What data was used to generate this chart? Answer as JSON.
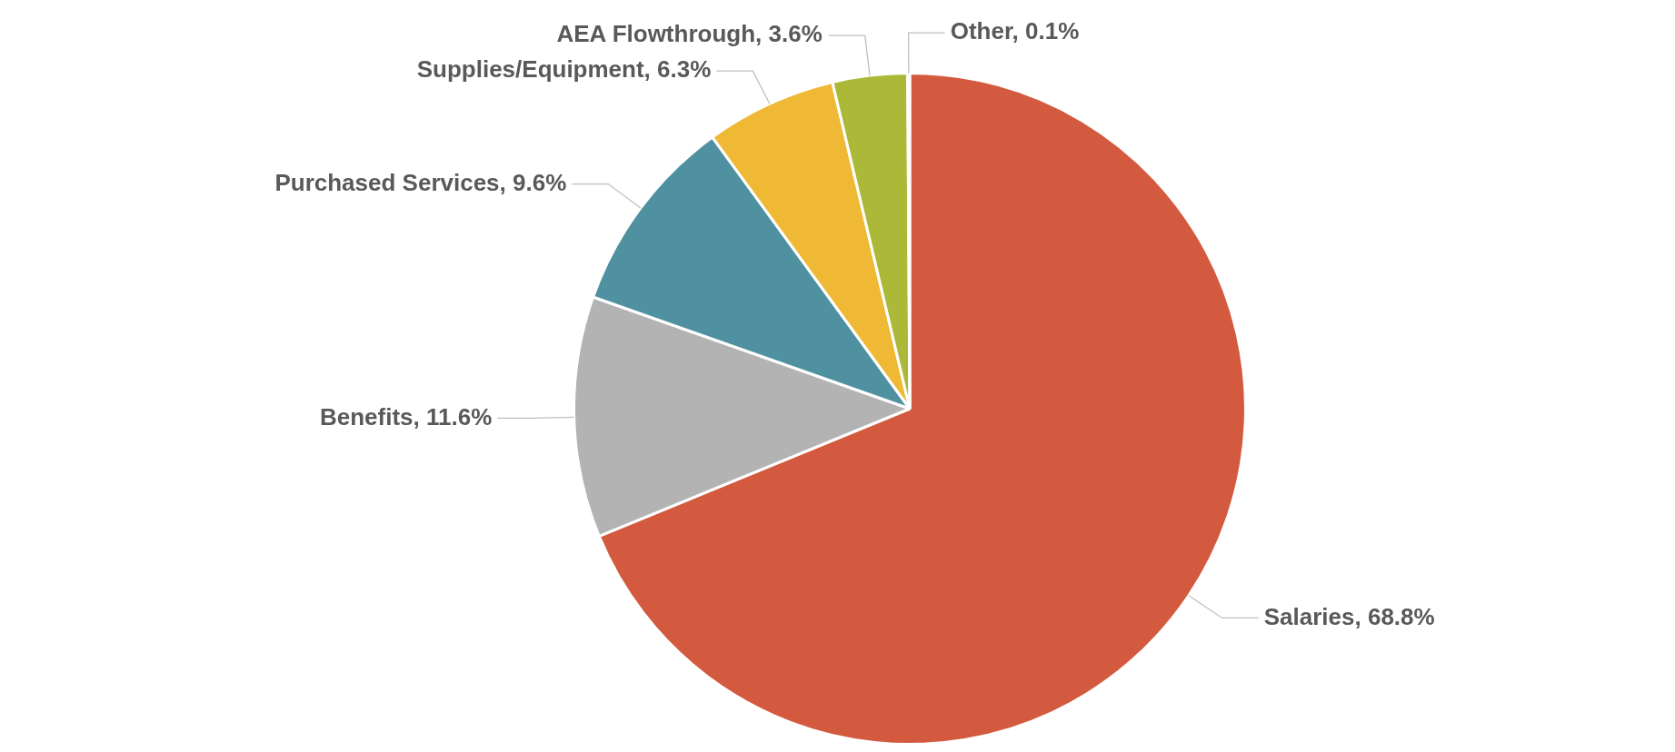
{
  "chart_data": {
    "type": "pie",
    "categories": [
      "Salaries",
      "Benefits",
      "Purchased Services",
      "Supplies/Equipment",
      "AEA Flowthrough",
      "Other"
    ],
    "values": [
      68.8,
      11.6,
      9.6,
      6.3,
      3.6,
      0.1
    ],
    "value_labels": [
      "68.8%",
      "11.6%",
      "9.6%",
      "6.3%",
      "3.6%",
      "0.1%"
    ],
    "colors": [
      "#d35a3f",
      "#b3b3b3",
      "#4f91a0",
      "#efb935",
      "#acb838",
      "#5b7fb8"
    ],
    "legend": false
  }
}
